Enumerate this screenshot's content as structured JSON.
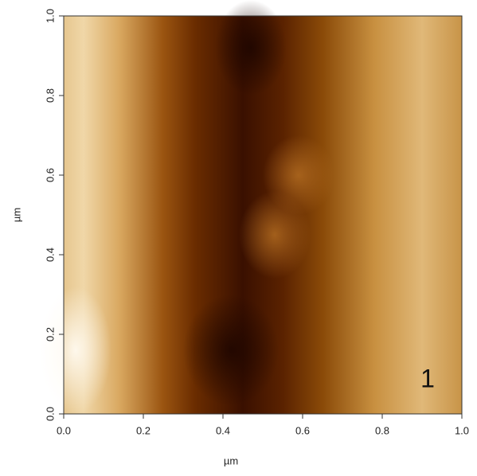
{
  "chart_data": {
    "type": "image",
    "xlabel": "µm",
    "ylabel": "µm",
    "annotation": "1",
    "xlim": [
      0,
      1
    ],
    "ylim": [
      0,
      1
    ],
    "xticks": [
      {
        "value": 0,
        "label": "0.0"
      },
      0.2,
      0.4,
      0.6,
      0.8,
      {
        "value": 1,
        "label": "1.0"
      }
    ],
    "yticks": [
      {
        "value": 0,
        "label": "0.0"
      },
      0.2,
      0.4,
      0.6,
      0.8,
      {
        "value": 1,
        "label": "1.0"
      }
    ]
  }
}
